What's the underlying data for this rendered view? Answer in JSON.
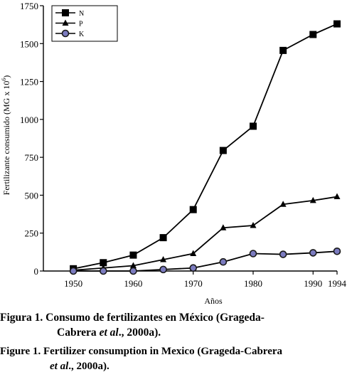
{
  "chart_data": {
    "type": "line",
    "xlabel": "Años",
    "ylabel": "Fertilizante consumido (MG x 10",
    "ylabel_sup": "6",
    "ylabel_end": ")",
    "ylim": [
      0,
      1750
    ],
    "yticks": [
      0,
      250,
      500,
      750,
      1000,
      1250,
      1500,
      1750
    ],
    "yticklabels": [
      "0",
      "250",
      "500",
      "750",
      "1000",
      "1250",
      "1500",
      "1750"
    ],
    "xlim": [
      1945,
      1994
    ],
    "xticks": [
      1950,
      1960,
      1970,
      1980,
      1990,
      1994
    ],
    "xticklabels": [
      "1950",
      "1960",
      "1970",
      "1980",
      "1990",
      "1994"
    ],
    "x": [
      1950,
      1955,
      1960,
      1965,
      1970,
      1975,
      1980,
      1985,
      1990,
      1994
    ],
    "legend_position": "top-left",
    "series": [
      {
        "name": "N",
        "marker": "square",
        "color": "#000000",
        "values": [
          15,
          55,
          105,
          220,
          405,
          795,
          955,
          1455,
          1560,
          1630
        ]
      },
      {
        "name": "P",
        "marker": "triangle",
        "color": "#000000",
        "values": [
          5,
          20,
          35,
          75,
          115,
          285,
          300,
          440,
          465,
          490
        ]
      },
      {
        "name": "K",
        "marker": "circle",
        "color": "#7b7bbf",
        "values": [
          0,
          0,
          0,
          10,
          20,
          60,
          115,
          110,
          120,
          130
        ]
      }
    ]
  },
  "caption": {
    "es_label": "Figura 1.",
    "es_text_1": "Consumo de fertilizantes en México (Grageda-",
    "es_text_2a": "Cabrera ",
    "es_text_2b": "et al",
    "es_text_2c": "., 2000a).",
    "en_label": "Figure 1.",
    "en_text_1": "Fertilizer consumption in Mexico (Grageda-Cabrera",
    "en_text_2a": "et al",
    "en_text_2b": "., 2000a)."
  }
}
